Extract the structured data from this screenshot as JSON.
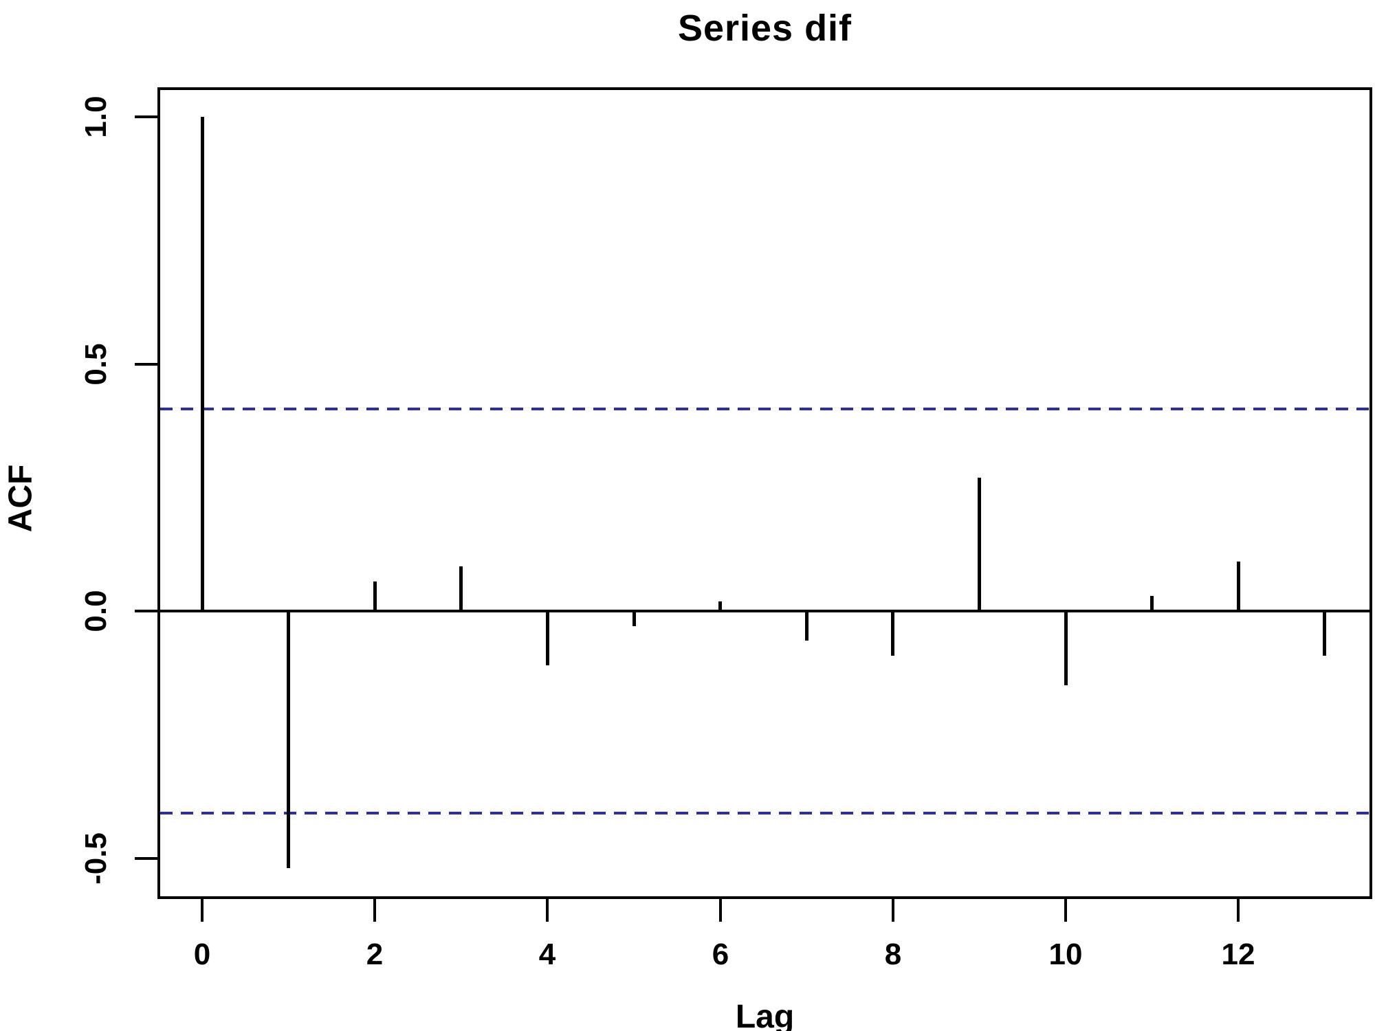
{
  "page": {
    "background": "#ffffff"
  },
  "chart_data": {
    "type": "bar",
    "subtype": "acf-stem-plot",
    "title": "Series dif",
    "xlabel": "Lag",
    "ylabel": "ACF",
    "x": [
      0,
      1,
      2,
      3,
      4,
      5,
      6,
      7,
      8,
      9,
      10,
      11,
      12,
      13
    ],
    "values": [
      1.0,
      -0.52,
      0.06,
      0.09,
      -0.11,
      -0.03,
      0.02,
      -0.06,
      -0.09,
      0.27,
      -0.15,
      0.03,
      0.1,
      -0.09
    ],
    "confidence_bounds": [
      0.409,
      -0.409
    ],
    "xticks": [
      0,
      2,
      4,
      6,
      8,
      10,
      12
    ],
    "xtick_labels": [
      "0",
      "2",
      "4",
      "6",
      "8",
      "10",
      "12"
    ],
    "yticks": [
      1.0,
      0.5,
      0.0,
      -0.5
    ],
    "ytick_labels": [
      "1.0",
      "0.5",
      "0.0",
      "-0.5"
    ],
    "xlim": [
      -0.52,
      13.42
    ],
    "ylim": [
      -0.58,
      1.06
    ],
    "grid": false,
    "series_color": "#000000",
    "zero_line_color": "#000000",
    "confidence_line_color": "#2d2da6",
    "confidence_line_style": "dashed"
  }
}
